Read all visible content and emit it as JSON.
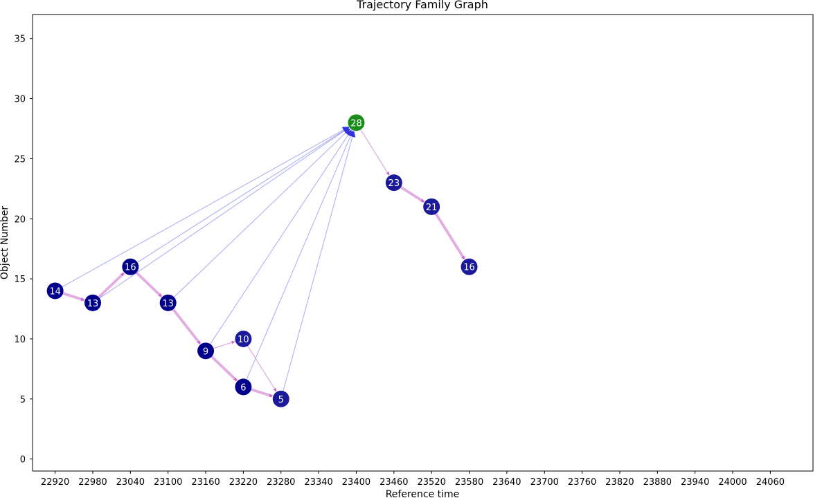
{
  "chart_data": {
    "type": "scatter",
    "title": "Trajectory Family Graph",
    "xlabel": "Reference time",
    "ylabel": "Object Number",
    "xlim": [
      22884,
      24128
    ],
    "ylim": [
      -1,
      37
    ],
    "xticks": [
      22920,
      22980,
      23040,
      23100,
      23160,
      23220,
      23280,
      23340,
      23400,
      23460,
      23520,
      23580,
      23640,
      23700,
      23760,
      23820,
      23880,
      23940,
      24000,
      24060
    ],
    "yticks": [
      0,
      5,
      10,
      15,
      20,
      25,
      30,
      35
    ],
    "grid": false,
    "nodes": [
      {
        "id": "a",
        "x": 22920,
        "y": 14,
        "label": "14",
        "color": "#00008b"
      },
      {
        "id": "b",
        "x": 22980,
        "y": 13,
        "label": "13",
        "color": "#00008b"
      },
      {
        "id": "c",
        "x": 23040,
        "y": 16,
        "label": "16",
        "color": "#00008b"
      },
      {
        "id": "d",
        "x": 23100,
        "y": 13,
        "label": "13",
        "color": "#00008b"
      },
      {
        "id": "e",
        "x": 23160,
        "y": 9,
        "label": "9",
        "color": "#00008b"
      },
      {
        "id": "f",
        "x": 23220,
        "y": 10,
        "label": "10",
        "color": "#1a1a9a"
      },
      {
        "id": "g",
        "x": 23220,
        "y": 6,
        "label": "6",
        "color": "#00008b"
      },
      {
        "id": "h",
        "x": 23280,
        "y": 5,
        "label": "5",
        "color": "#1a1a9a"
      },
      {
        "id": "i",
        "x": 23400,
        "y": 28,
        "label": "28",
        "color": "#1a8c1a"
      },
      {
        "id": "j",
        "x": 23460,
        "y": 23,
        "label": "23",
        "color": "#1a1a9a"
      },
      {
        "id": "k",
        "x": 23520,
        "y": 21,
        "label": "21",
        "color": "#1a1a9a"
      },
      {
        "id": "l",
        "x": 23580,
        "y": 16,
        "label": "16",
        "color": "#1a1a9a"
      }
    ],
    "edges": [
      {
        "from": "a",
        "to": "b",
        "kind": "succ",
        "weight": 3
      },
      {
        "from": "b",
        "to": "c",
        "kind": "succ",
        "weight": 3
      },
      {
        "from": "c",
        "to": "d",
        "kind": "succ",
        "weight": 3
      },
      {
        "from": "d",
        "to": "e",
        "kind": "succ",
        "weight": 3
      },
      {
        "from": "e",
        "to": "f",
        "kind": "succ",
        "weight": 1
      },
      {
        "from": "e",
        "to": "g",
        "kind": "succ",
        "weight": 3
      },
      {
        "from": "f",
        "to": "h",
        "kind": "succ",
        "weight": 1
      },
      {
        "from": "g",
        "to": "h",
        "kind": "succ",
        "weight": 3
      },
      {
        "from": "i",
        "to": "j",
        "kind": "succ",
        "weight": 1
      },
      {
        "from": "j",
        "to": "k",
        "kind": "succ",
        "weight": 3
      },
      {
        "from": "k",
        "to": "l",
        "kind": "succ",
        "weight": 3
      },
      {
        "from": "a",
        "to": "i",
        "kind": "link",
        "weight": 1
      },
      {
        "from": "b",
        "to": "i",
        "kind": "link",
        "weight": 1
      },
      {
        "from": "c",
        "to": "i",
        "kind": "link",
        "weight": 1
      },
      {
        "from": "d",
        "to": "i",
        "kind": "link",
        "weight": 1
      },
      {
        "from": "e",
        "to": "i",
        "kind": "link",
        "weight": 1
      },
      {
        "from": "g",
        "to": "i",
        "kind": "link",
        "weight": 1
      },
      {
        "from": "h",
        "to": "i",
        "kind": "link",
        "weight": 1
      }
    ],
    "colors": {
      "succ_edge": "#dda0dd",
      "succ_arrow": "#cc66cc",
      "link_edge": "#7070ee",
      "link_arrow": "#3333dd"
    }
  }
}
